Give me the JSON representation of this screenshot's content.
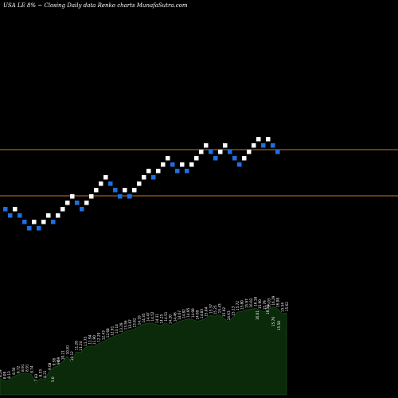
{
  "header": {
    "symbol": "USA LE 8%",
    "tilde": "~",
    "caption": "Closing Daily data  Renko  charts MunafaSutra.com"
  },
  "colors": {
    "background": "#000000",
    "up_brick": "#ffffff",
    "down_brick": "#1e6fe0",
    "support_line": "#c87820",
    "volume_fill": "#0a2a0a",
    "volume_stroke": "#1c4a1c",
    "label": "#ffffff"
  },
  "chart_data": [
    {
      "type": "renko",
      "price_range": [
        1,
        24
      ],
      "levels": {
        "upper_line": 15.6,
        "lower_line": 12.7
      },
      "bricks": [
        {
          "level": 11.85,
          "dir": "down"
        },
        {
          "level": 11.45,
          "dir": "down"
        },
        {
          "level": 11.85,
          "dir": "up"
        },
        {
          "level": 11.45,
          "dir": "down"
        },
        {
          "level": 11.05,
          "dir": "down"
        },
        {
          "level": 10.65,
          "dir": "down"
        },
        {
          "level": 11.05,
          "dir": "up"
        },
        {
          "level": 10.65,
          "dir": "down"
        },
        {
          "level": 11.05,
          "dir": "up"
        },
        {
          "level": 11.45,
          "dir": "up"
        },
        {
          "level": 11.05,
          "dir": "down"
        },
        {
          "level": 11.45,
          "dir": "up"
        },
        {
          "level": 11.85,
          "dir": "up"
        },
        {
          "level": 12.25,
          "dir": "up"
        },
        {
          "level": 12.65,
          "dir": "up"
        },
        {
          "level": 12.25,
          "dir": "down"
        },
        {
          "level": 11.85,
          "dir": "down"
        },
        {
          "level": 12.25,
          "dir": "up"
        },
        {
          "level": 12.65,
          "dir": "up"
        },
        {
          "level": 13.05,
          "dir": "up"
        },
        {
          "level": 13.45,
          "dir": "up"
        },
        {
          "level": 13.85,
          "dir": "up"
        },
        {
          "level": 13.45,
          "dir": "down"
        },
        {
          "level": 13.05,
          "dir": "down"
        },
        {
          "level": 12.65,
          "dir": "down"
        },
        {
          "level": 13.05,
          "dir": "up"
        },
        {
          "level": 12.65,
          "dir": "down"
        },
        {
          "level": 13.05,
          "dir": "up"
        },
        {
          "level": 13.45,
          "dir": "up"
        },
        {
          "level": 13.85,
          "dir": "up"
        },
        {
          "level": 14.25,
          "dir": "up"
        },
        {
          "level": 13.85,
          "dir": "down"
        },
        {
          "level": 14.25,
          "dir": "up"
        },
        {
          "level": 14.65,
          "dir": "up"
        },
        {
          "level": 15.05,
          "dir": "up"
        },
        {
          "level": 14.65,
          "dir": "down"
        },
        {
          "level": 14.25,
          "dir": "down"
        },
        {
          "level": 14.65,
          "dir": "up"
        },
        {
          "level": 14.25,
          "dir": "down"
        },
        {
          "level": 14.65,
          "dir": "up"
        },
        {
          "level": 15.05,
          "dir": "up"
        },
        {
          "level": 15.45,
          "dir": "up"
        },
        {
          "level": 15.85,
          "dir": "up"
        },
        {
          "level": 15.45,
          "dir": "down"
        },
        {
          "level": 15.05,
          "dir": "down"
        },
        {
          "level": 15.45,
          "dir": "up"
        },
        {
          "level": 15.85,
          "dir": "up"
        },
        {
          "level": 15.45,
          "dir": "down"
        },
        {
          "level": 15.05,
          "dir": "down"
        },
        {
          "level": 14.65,
          "dir": "down"
        },
        {
          "level": 15.05,
          "dir": "up"
        },
        {
          "level": 15.45,
          "dir": "up"
        },
        {
          "level": 15.85,
          "dir": "up"
        },
        {
          "level": 16.25,
          "dir": "up"
        },
        {
          "level": 15.85,
          "dir": "down"
        },
        {
          "level": 16.25,
          "dir": "up"
        },
        {
          "level": 15.85,
          "dir": "down"
        },
        {
          "level": 15.45,
          "dir": "down"
        }
      ]
    },
    {
      "type": "area",
      "series_labels": [
        "8.29",
        "8.09",
        "8.13",
        "8.56",
        "8.72",
        "8.91",
        "8.91",
        "8.74",
        "7.83",
        "8.33",
        "8.21",
        "9.08",
        "9.58",
        "9.69",
        "10.21",
        "10.81",
        "10.12",
        "11.28",
        "11.24",
        "11.75",
        "11.94",
        "11.90",
        "12.20",
        "12.43",
        "12.68",
        "12.91",
        "13.14",
        "13.29",
        "13.56",
        "13.67",
        "13.82",
        "14.10",
        "14.35",
        "14.47",
        "14.52",
        "14.31",
        "14.25",
        "14.51",
        "14.20",
        "14.46",
        "14.67",
        "14.82",
        "14.95",
        "14.90",
        "14.69",
        "14.83",
        "15.04",
        "15.37",
        "15.25",
        "15.43",
        "15.02",
        "14.63",
        "15.13",
        "15.72",
        "15.80",
        "15.97",
        "16.02",
        "16.18",
        "15.90",
        "15.79",
        "16.03",
        "16.29",
        "16.08",
        "15.54",
        "15.62"
      ],
      "extra_labels": [
        "6",
        "5.0",
        "16.50",
        "15.76",
        "16.01",
        "15.50"
      ],
      "values": [
        8.29,
        8.09,
        8.13,
        8.56,
        8.72,
        8.91,
        8.91,
        8.74,
        7.83,
        8.33,
        8.21,
        9.08,
        9.58,
        9.69,
        10.21,
        10.81,
        10.12,
        11.28,
        11.24,
        11.75,
        11.94,
        11.9,
        12.2,
        12.43,
        12.68,
        12.91,
        13.14,
        13.29,
        13.56,
        13.67,
        13.82,
        14.1,
        14.35,
        14.47,
        14.52,
        14.31,
        14.25,
        14.51,
        14.2,
        14.46,
        14.67,
        14.82,
        14.95,
        14.9,
        14.69,
        14.83,
        15.04,
        15.37,
        15.25,
        15.43,
        15.02,
        14.63,
        15.13,
        15.72,
        15.8,
        15.97,
        16.02,
        16.18,
        15.9,
        15.79,
        16.03,
        16.29,
        16.08,
        15.54,
        15.62
      ]
    }
  ]
}
